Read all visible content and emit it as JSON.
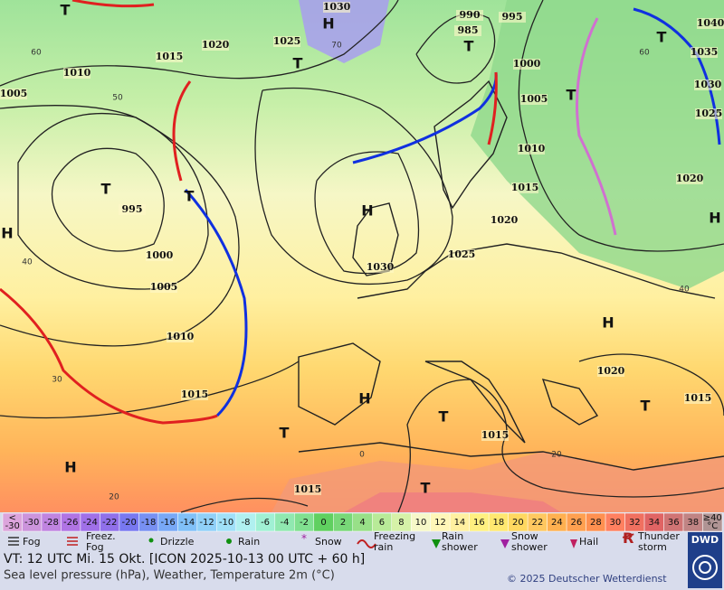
{
  "map": {
    "pressure_labels": [
      "1030",
      "1020",
      "1025",
      "1015",
      "1010",
      "1005",
      "995",
      "1000",
      "1005",
      "1010",
      "1015",
      "1030",
      "1025",
      "1020",
      "1015",
      "1010",
      "1005",
      "1000",
      "990",
      "985",
      "995",
      "1040",
      "1035",
      "1030",
      "1025",
      "1020",
      "1020",
      "1015",
      "1015",
      "1015"
    ],
    "centers": [
      "H",
      "T",
      "T",
      "T",
      "T",
      "H",
      "H",
      "T",
      "H",
      "H",
      "H",
      "T",
      "T",
      "T",
      "H",
      "T",
      "T",
      "T"
    ],
    "temperature_labels": [
      "60",
      "50",
      "40",
      "30",
      "20",
      "0",
      "20",
      "40",
      "60",
      "70"
    ]
  },
  "color_scale": {
    "below": {
      "line1": "<",
      "line2": "-30"
    },
    "values": [
      -30,
      -28,
      -26,
      -24,
      -22,
      -20,
      -18,
      -16,
      -14,
      -12,
      -10,
      -8,
      -6,
      -4,
      -2,
      0,
      2,
      4,
      6,
      8,
      10,
      12,
      14,
      16,
      18,
      20,
      22,
      24,
      26,
      28,
      30,
      32,
      34,
      36,
      38
    ],
    "above": {
      "line1": "≥40",
      "line2": "°C"
    }
  },
  "weather_legend": [
    {
      "lines": [
        "Fog"
      ]
    },
    {
      "lines": [
        "Freez.",
        "Fog"
      ]
    },
    {
      "lines": [
        "Drizzle"
      ]
    },
    {
      "lines": [
        "Rain"
      ]
    },
    {
      "lines": [
        "Snow"
      ]
    },
    {
      "lines": [
        "Freezing",
        "rain"
      ]
    },
    {
      "lines": [
        "Rain",
        "shower"
      ]
    },
    {
      "lines": [
        "Snow",
        "shower"
      ]
    },
    {
      "lines": [
        "Hail"
      ]
    },
    {
      "lines": [
        "Thunder",
        "storm"
      ]
    }
  ],
  "footer": {
    "valid_time": "VT: 12 UTC Mi.  15 Okt. [ICON 2025-10-13  00 UTC + 60 h]",
    "subtitle": "Sea level pressure (hPa), Weather, Temperature 2m (°C)",
    "copyright": "© 2025 Deutscher Wetterdienst",
    "logo": "DWD"
  }
}
